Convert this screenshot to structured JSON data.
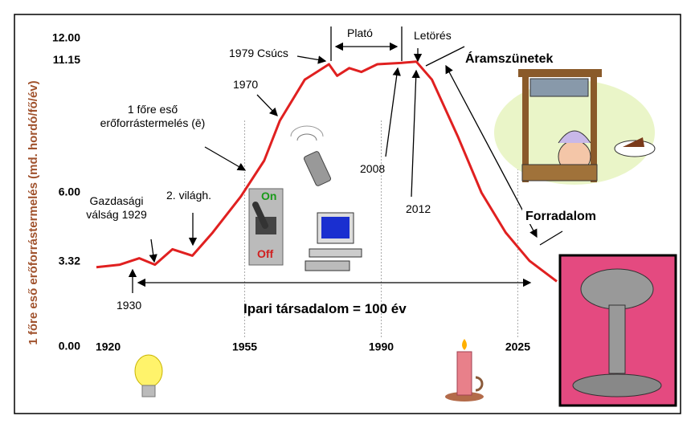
{
  "chart_data": {
    "type": "line",
    "y_label": "1 főre eső erőforrástermelés (md. hordó/fő/év)",
    "x": [
      1917,
      1923,
      1928,
      1932,
      1936.5,
      1941.6,
      1946.8,
      1954,
      1960,
      1964,
      1970.4,
      1973.5,
      1976.6,
      1978.7,
      1981.8,
      1984.9,
      1989,
      1995,
      1999,
      2003,
      2009.6,
      2015.7,
      2021.9,
      2028,
      2035
    ],
    "series": [
      {
        "color": "#e02020",
        "values": [
          3.1,
          3.2,
          3.45,
          3.2,
          3.8,
          3.55,
          4.45,
          5.85,
          7.25,
          8.8,
          10.4,
          10.7,
          11.0,
          10.55,
          10.85,
          10.7,
          11.0,
          11.05,
          11.1,
          10.4,
          8.2,
          6.0,
          4.45,
          3.35,
          2.55
        ]
      }
    ],
    "xlim": [
      1917,
      2035
    ],
    "ylim": [
      0,
      12
    ],
    "xticks": [
      1920,
      1955,
      1990,
      2025
    ],
    "yticks": [
      {
        "value": 0,
        "label": "0.00"
      },
      3.32,
      {
        "value": 6,
        "label": "6.00"
      },
      11.15,
      {
        "value": 12,
        "label": "12.00"
      }
    ],
    "grid": true,
    "annotations": [
      "1 főre eső erőforrástermelés (ē)",
      "1970",
      "1979 Csúcs",
      "Plató",
      "Letörés",
      "Áramszünetek",
      "2008",
      "2012",
      "Forradalom",
      "Gazdasági válság 1929",
      "2. világh.",
      "1930",
      "Ipari társadalom = 100 év",
      "On",
      "Off"
    ]
  }
}
